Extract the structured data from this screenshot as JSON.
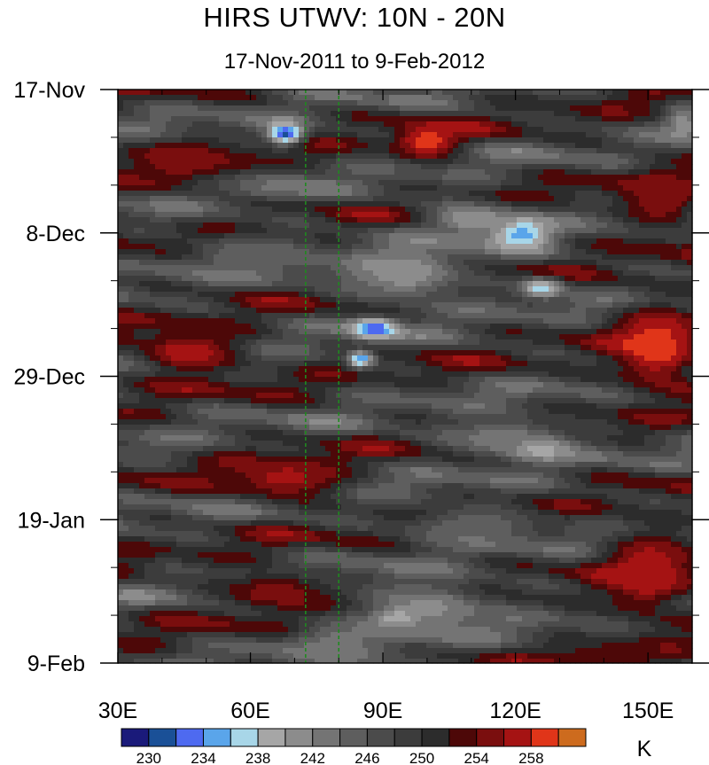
{
  "chart_data": {
    "type": "heatmap",
    "title": "HIRS UTWV: 10N - 20N",
    "subtitle": "17-Nov-2011 to 9-Feb-2012",
    "x_axis": {
      "range": [
        30,
        160
      ],
      "ticks": [
        {
          "value": 30,
          "label": "30E"
        },
        {
          "value": 60,
          "label": "60E"
        },
        {
          "value": 90,
          "label": "90E"
        },
        {
          "value": 120,
          "label": "120E"
        },
        {
          "value": 150,
          "label": "150E"
        }
      ]
    },
    "y_axis": {
      "range_days": [
        0,
        84
      ],
      "ticks": [
        {
          "value": 0,
          "label": "17-Nov"
        },
        {
          "value": 21,
          "label": "8-Dec"
        },
        {
          "value": 42,
          "label": "29-Dec"
        },
        {
          "value": 63,
          "label": "19-Jan"
        },
        {
          "value": 84,
          "label": "9-Feb"
        }
      ]
    },
    "reference_lines_lon": [
      72.5,
      80
    ],
    "colorbar": {
      "unit": "K",
      "levels": [
        230,
        232,
        234,
        236,
        238,
        240,
        242,
        244,
        246,
        248,
        250,
        252,
        254,
        256,
        258,
        260
      ],
      "labels": [
        {
          "value": 230,
          "label": "230"
        },
        {
          "value": 234,
          "label": "234"
        },
        {
          "value": 238,
          "label": "238"
        },
        {
          "value": 242,
          "label": "242"
        },
        {
          "value": 246,
          "label": "246"
        },
        {
          "value": 250,
          "label": "250"
        },
        {
          "value": 254,
          "label": "254"
        },
        {
          "value": 258,
          "label": "258"
        }
      ],
      "colors": [
        "#1a1a7a",
        "#1a5097",
        "#4e6af0",
        "#5aa5ea",
        "#a8d6e8",
        "#a6a6a6",
        "#8c8c8c",
        "#747474",
        "#5e5e5e",
        "#4b4b4b",
        "#3c3c3c",
        "#2c2c2c",
        "#4d0808",
        "#7a0e0e",
        "#a51313",
        "#e03519",
        "#cd6b1e"
      ]
    },
    "background_value": 249,
    "features": [
      {
        "lon": 68,
        "day": 6.5,
        "value": 231,
        "spread_lon": 4,
        "spread_day": 1.6
      },
      {
        "lon": 65,
        "day": 14,
        "value": 243,
        "spread_lon": 9,
        "spread_day": 2
      },
      {
        "lon": 100,
        "day": 7.5,
        "value": 260,
        "spread_lon": 7,
        "spread_day": 2.4
      },
      {
        "lon": 121,
        "day": 21,
        "value": 234,
        "spread_lon": 7,
        "spread_day": 2.6
      },
      {
        "lon": 110,
        "day": 19,
        "value": 240,
        "spread_lon": 10,
        "spread_day": 2.4
      },
      {
        "lon": 126,
        "day": 29,
        "value": 236,
        "spread_lon": 5,
        "spread_day": 1.5
      },
      {
        "lon": 88,
        "day": 35,
        "value": 232,
        "spread_lon": 5,
        "spread_day": 1.6
      },
      {
        "lon": 85,
        "day": 39.5,
        "value": 234,
        "spread_lon": 3,
        "spread_day": 1.3
      },
      {
        "lon": 95,
        "day": 27,
        "value": 240,
        "spread_lon": 14,
        "spread_day": 4
      },
      {
        "lon": 46,
        "day": 38.5,
        "value": 258,
        "spread_lon": 12,
        "spread_day": 3.2
      },
      {
        "lon": 152,
        "day": 38,
        "value": 260,
        "spread_lon": 10,
        "spread_day": 6
      },
      {
        "lon": 125,
        "day": 52.5,
        "value": 235,
        "spread_lon": 6,
        "spread_day": 1.6
      },
      {
        "lon": 118,
        "day": 51,
        "value": 242,
        "spread_lon": 14,
        "spread_day": 3
      },
      {
        "lon": 68,
        "day": 57,
        "value": 257,
        "spread_lon": 13,
        "spread_day": 3.2
      },
      {
        "lon": 150,
        "day": 71,
        "value": 258,
        "spread_lon": 11,
        "spread_day": 6.5
      },
      {
        "lon": 66,
        "day": 73.5,
        "value": 256,
        "spread_lon": 12,
        "spread_day": 3
      },
      {
        "lon": 100,
        "day": 76,
        "value": 241,
        "spread_lon": 16,
        "spread_day": 4
      },
      {
        "lon": 93,
        "day": 77.5,
        "value": 238,
        "spread_lon": 4,
        "spread_day": 1.2
      },
      {
        "lon": 45,
        "day": 11,
        "value": 255,
        "spread_lon": 14,
        "spread_day": 3
      },
      {
        "lon": 153,
        "day": 16,
        "value": 256,
        "spread_lon": 9,
        "spread_day": 5
      },
      {
        "lon": 158,
        "day": 5,
        "value": 241,
        "spread_lon": 4,
        "spread_day": 3
      },
      {
        "lon": 60,
        "day": 24,
        "value": 244,
        "spread_lon": 14,
        "spread_day": 3
      },
      {
        "lon": 110,
        "day": 64,
        "value": 244,
        "spread_lon": 16,
        "spread_day": 3
      },
      {
        "lon": 80,
        "day": 81,
        "value": 243,
        "spread_lon": 12,
        "spread_day": 3
      },
      {
        "lon": 140,
        "day": 83,
        "value": 253,
        "spread_lon": 14,
        "spread_day": 2.4
      }
    ]
  }
}
